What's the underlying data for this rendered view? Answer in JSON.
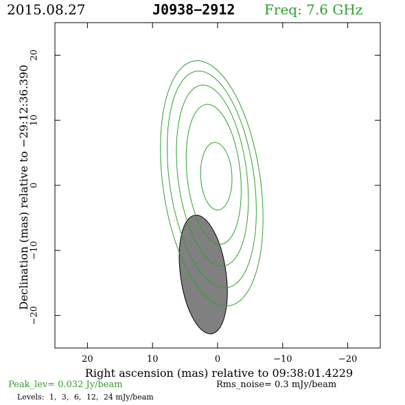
{
  "header": {
    "date": "2015.08.27",
    "source": "J0938−2912",
    "freq": "Freq: 7.6 GHz"
  },
  "colors": {
    "contour": "#2ca02c",
    "beam_fill": "#808080",
    "frame": "#000000"
  },
  "chart_data": {
    "type": "contour",
    "xlabel": "Right ascension (mas) relative to 09:38:01.4229",
    "ylabel": "Declination (mas) relative to −29:12:36.390",
    "xlim": [
      25,
      -25
    ],
    "ylim": [
      -25,
      25
    ],
    "x_ticks": [
      20,
      10,
      0,
      -10,
      -20
    ],
    "x_tick_labels": [
      "20",
      "10",
      "0",
      "−10",
      "−20"
    ],
    "y_ticks": [
      20,
      10,
      0,
      -10,
      -20
    ],
    "y_tick_labels": [
      "20",
      "10",
      "0",
      "−10",
      "−20"
    ],
    "contours": [
      {
        "level": 1,
        "cx": 0.9,
        "cy": 0.3,
        "rx": 7.5,
        "ry": 19.0,
        "rot_deg": 8
      },
      {
        "level": 3,
        "cx": 0.9,
        "cy": 0.9,
        "rx": 6.5,
        "ry": 16.8,
        "rot_deg": 8
      },
      {
        "level": 6,
        "cx": 0.8,
        "cy": 1.5,
        "rx": 5.3,
        "ry": 14.0,
        "rot_deg": 7
      },
      {
        "level": 12,
        "cx": 0.6,
        "cy": 1.7,
        "rx": 4.1,
        "ry": 10.8,
        "rot_deg": 6
      },
      {
        "level": 24,
        "cx": 0.2,
        "cy": 1.4,
        "rx": 2.4,
        "ry": 5.2,
        "rot_deg": 3
      }
    ],
    "beam": {
      "cx": 2.2,
      "cy": -13.7,
      "rx": 3.5,
      "ry": 9.2,
      "rot_deg": 8
    }
  },
  "footer": {
    "peak": "Peak_lev=  0.032 Jy/beam",
    "rms": "Rms_noise=  0.3 mJy/beam",
    "levels_label": "Levels:",
    "levels": [
      "1,",
      "3,",
      "6,",
      "12,",
      "24 mJy/beam"
    ]
  }
}
